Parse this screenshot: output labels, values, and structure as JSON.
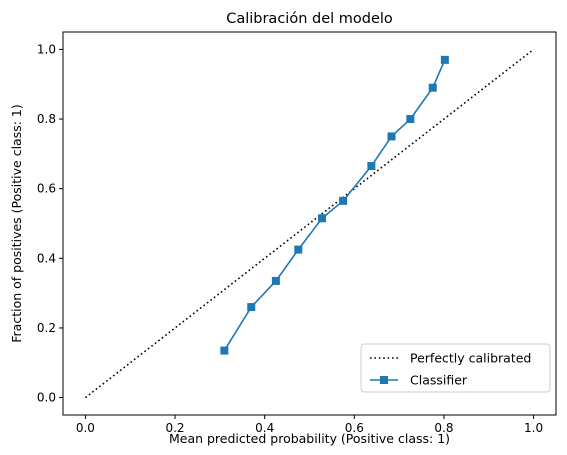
{
  "chart_data": {
    "type": "line",
    "title": "Calibración del modelo",
    "xlabel": "Mean predicted probability (Positive class: 1)",
    "ylabel": "Fraction of positives (Positive class: 1)",
    "xlim": [
      -0.05,
      1.05
    ],
    "ylim": [
      -0.05,
      1.05
    ],
    "xticks": [
      0.0,
      0.2,
      0.4,
      0.6,
      0.8,
      1.0
    ],
    "xtick_labels": [
      "0.0",
      "0.2",
      "0.4",
      "0.6",
      "0.8",
      "1.0"
    ],
    "yticks": [
      0.0,
      0.2,
      0.4,
      0.6,
      0.8,
      1.0
    ],
    "ytick_labels": [
      "0.0",
      "0.2",
      "0.4",
      "0.6",
      "0.8",
      "1.0"
    ],
    "grid": false,
    "legend_position": "lower-right",
    "series": [
      {
        "name": "Perfectly calibrated",
        "style": "dotted",
        "marker": "none",
        "color": "#000000",
        "x": [
          0.0,
          1.0
        ],
        "y": [
          0.0,
          1.0
        ]
      },
      {
        "name": "Classifier",
        "style": "solid",
        "marker": "square",
        "color": "#1f77b4",
        "x": [
          0.31,
          0.37,
          0.425,
          0.475,
          0.528,
          0.575,
          0.638,
          0.683,
          0.725,
          0.775,
          0.802
        ],
        "y": [
          0.135,
          0.26,
          0.335,
          0.425,
          0.515,
          0.565,
          0.665,
          0.75,
          0.8,
          0.89,
          0.97
        ]
      }
    ]
  }
}
